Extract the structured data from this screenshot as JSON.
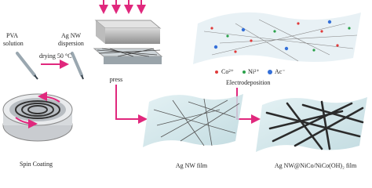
{
  "nodes": [
    {
      "label": "PVA"
    },
    {
      "label": "solution"
    },
    {
      "label": "Ag NW"
    },
    {
      "label": "dispersion"
    },
    {
      "label": "drying 50 °C"
    },
    {
      "label": "press"
    },
    {
      "label": "Co²⁺"
    },
    {
      "label": "Ni²⁺"
    },
    {
      "label": "Ac⁻"
    },
    {
      "label": "Electrodeposition"
    },
    {
      "label": "Spin Coating"
    },
    {
      "label": "Ag NW film"
    },
    {
      "label": "Ag NW@NiCo/NiCo(OH)₂ film"
    }
  ]
}
